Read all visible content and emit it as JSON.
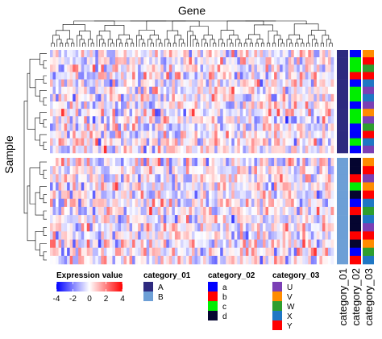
{
  "chart_data": {
    "type": "heatmap",
    "column_title": "Gene",
    "row_title": "Sample",
    "n_columns": 100,
    "row_split": [
      {
        "group": "A",
        "n_rows": 14
      },
      {
        "group": "B",
        "n_rows": 13
      }
    ],
    "color_scale": {
      "name": "Expression value",
      "ticks": [
        "-4",
        "-2",
        "0",
        "2",
        "4"
      ],
      "range": [
        -4,
        4
      ],
      "stops": [
        {
          "value": -4,
          "color": "#0000ff"
        },
        {
          "value": 0,
          "color": "#ffffff"
        },
        {
          "value": 4,
          "color": "#ff0000"
        }
      ]
    },
    "annotations": [
      {
        "name": "category_01",
        "levels": [
          {
            "label": "A",
            "color": "#2e2a7f"
          },
          {
            "label": "B",
            "color": "#6d9fd6"
          }
        ],
        "values": [
          "A",
          "A",
          "A",
          "A",
          "A",
          "A",
          "A",
          "A",
          "A",
          "A",
          "A",
          "A",
          "A",
          "A",
          "B",
          "B",
          "B",
          "B",
          "B",
          "B",
          "B",
          "B",
          "B",
          "B",
          "B",
          "B",
          "B"
        ]
      },
      {
        "name": "category_02",
        "levels": [
          {
            "label": "a",
            "color": "#0000ff"
          },
          {
            "label": "b",
            "color": "#ff0000"
          },
          {
            "label": "c",
            "color": "#00ee00"
          },
          {
            "label": "d",
            "color": "#050530"
          }
        ],
        "values": [
          "a",
          "c",
          "c",
          "b",
          "a",
          "c",
          "c",
          "a",
          "c",
          "c",
          "a",
          "a",
          "c",
          "a",
          "d",
          "d",
          "b",
          "c",
          "d",
          "a",
          "b",
          "d",
          "d",
          "b",
          "d",
          "a",
          "b"
        ]
      },
      {
        "name": "category_03",
        "levels": [
          {
            "label": "U",
            "color": "#7b3fb5"
          },
          {
            "label": "V",
            "color": "#ff8c00"
          },
          {
            "label": "W",
            "color": "#2e9e2e"
          },
          {
            "label": "X",
            "color": "#1f77c4"
          },
          {
            "label": "Y",
            "color": "#ff0000"
          }
        ],
        "values": [
          "V",
          "Y",
          "W",
          "Y",
          "X",
          "U",
          "X",
          "U",
          "V",
          "U",
          "W",
          "Y",
          "X",
          "U",
          "V",
          "Y",
          "U",
          "V",
          "Y",
          "X",
          "W",
          "X",
          "U",
          "Y",
          "V",
          "W",
          "X"
        ]
      }
    ]
  }
}
